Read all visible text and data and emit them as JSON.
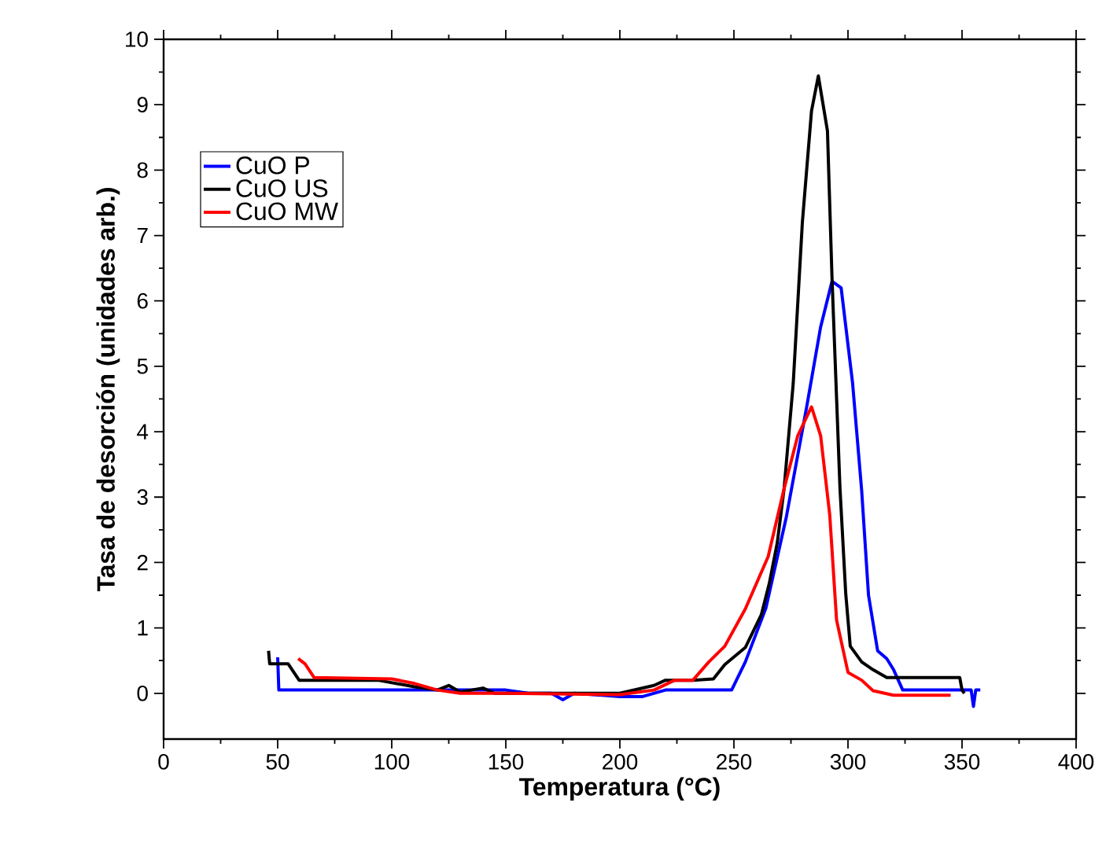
{
  "chart_data": {
    "type": "line",
    "xlabel": "Temperatura (°C)",
    "ylabel": "Tasa de desorción (unidades arb.)",
    "xlim": [
      0,
      400
    ],
    "ylim": [
      -0.7,
      10
    ],
    "xticks": [
      0,
      50,
      100,
      150,
      200,
      250,
      300,
      350,
      400
    ],
    "yticks": [
      0,
      1,
      2,
      3,
      4,
      5,
      6,
      7,
      8,
      9,
      10
    ],
    "grid": false,
    "legend": "top left",
    "marker": "none",
    "line_style": "solid",
    "series": [
      {
        "name": "CuO P",
        "color": "#0000ff",
        "x": [
          50,
          50.5,
          100,
          150,
          160,
          170,
          175,
          180,
          200,
          210,
          220,
          249,
          255,
          264,
          273,
          282,
          288,
          293,
          297,
          302,
          306,
          309,
          313,
          317,
          320,
          324,
          340,
          354,
          355,
          356,
          358
        ],
        "values": [
          0.55,
          0.05,
          0.05,
          0.05,
          0.0,
          0.0,
          -0.1,
          0.0,
          -0.05,
          -0.05,
          0.05,
          0.05,
          0.48,
          1.3,
          2.7,
          4.4,
          5.6,
          6.3,
          6.2,
          4.75,
          3.1,
          1.5,
          0.65,
          0.53,
          0.36,
          0.05,
          0.05,
          0.05,
          -0.2,
          0.05,
          0.05
        ]
      },
      {
        "name": "CuO US",
        "color": "#000000",
        "x": [
          46,
          46.5,
          54.6,
          59.4,
          94,
          110,
          120,
          125,
          130,
          140,
          145,
          150,
          200,
          215,
          220,
          232,
          241,
          246,
          255,
          262,
          265.5,
          269,
          272,
          276,
          280,
          284,
          287,
          291,
          293,
          296.5,
          299,
          301,
          306,
          311,
          317,
          349,
          350,
          351
        ],
        "values": [
          0.65,
          0.45,
          0.45,
          0.2,
          0.2,
          0.1,
          0.05,
          0.12,
          0.02,
          0.08,
          0.0,
          0.0,
          0.0,
          0.12,
          0.2,
          0.2,
          0.22,
          0.44,
          0.7,
          1.2,
          1.68,
          2.3,
          3.13,
          4.74,
          7.2,
          8.9,
          9.44,
          8.6,
          6.35,
          3.13,
          1.53,
          0.72,
          0.48,
          0.36,
          0.24,
          0.24,
          0.05,
          0.0
        ]
      },
      {
        "name": "CuO MW",
        "color": "#ff0000",
        "x": [
          59,
          62,
          66,
          100,
          110,
          120,
          130,
          150,
          200,
          215,
          224,
          232,
          239,
          246,
          255,
          265,
          272,
          278,
          284,
          288,
          292,
          295,
          300,
          306,
          311,
          320,
          345
        ],
        "values": [
          0.53,
          0.45,
          0.24,
          0.22,
          0.15,
          0.05,
          0.0,
          0.0,
          -0.02,
          0.05,
          0.2,
          0.2,
          0.48,
          0.72,
          1.29,
          2.09,
          3.13,
          3.94,
          4.38,
          3.94,
          2.73,
          1.12,
          0.32,
          0.2,
          0.04,
          -0.03,
          -0.03
        ]
      }
    ]
  }
}
